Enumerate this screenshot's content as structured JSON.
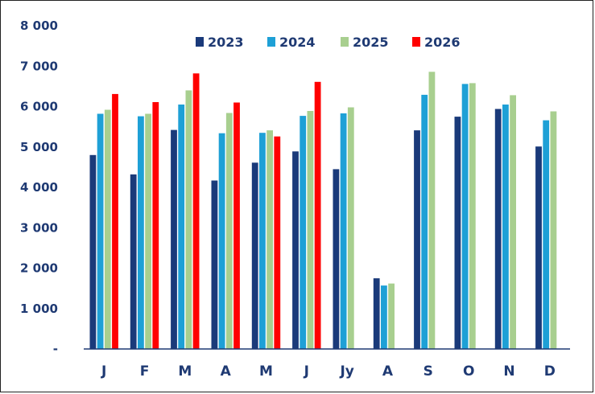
{
  "chart_data": {
    "type": "bar",
    "categories": [
      "J",
      "F",
      "M",
      "A",
      "M",
      "J",
      "Jy",
      "A",
      "S",
      "O",
      "N",
      "D"
    ],
    "ytick_labels": [
      "-",
      "1 000",
      "2 000",
      "3 000",
      "4 000",
      "5 000",
      "6 000",
      "7 000",
      "8 000"
    ],
    "ylim": [
      0,
      8000
    ],
    "legend_position": "top-center",
    "grid": false,
    "series": [
      {
        "name": "2023",
        "color": "#1a3a7a",
        "values": [
          4800,
          4320,
          5420,
          4170,
          4610,
          4890,
          4450,
          1750,
          5410,
          5750,
          5940,
          5010
        ]
      },
      {
        "name": "2024",
        "color": "#1ea0d6",
        "values": [
          5820,
          5760,
          6050,
          5340,
          5350,
          5770,
          5830,
          1570,
          6290,
          6560,
          6050,
          5660
        ]
      },
      {
        "name": "2025",
        "color": "#a8cf8f",
        "values": [
          5920,
          5820,
          6400,
          5840,
          5410,
          5890,
          5980,
          1620,
          6860,
          6580,
          6280,
          5880
        ]
      },
      {
        "name": "2026",
        "color": "#ff0000",
        "values": [
          6310,
          6110,
          6820,
          6100,
          5260,
          6610,
          null,
          null,
          null,
          null,
          null,
          null
        ]
      }
    ]
  }
}
